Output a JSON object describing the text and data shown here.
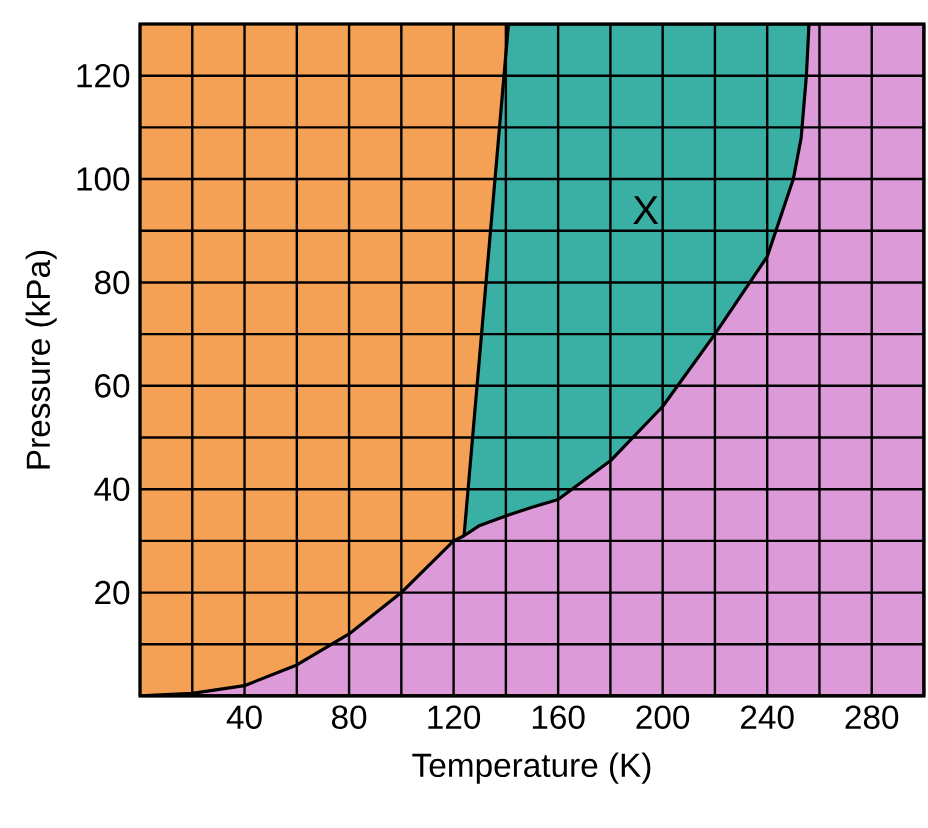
{
  "chart_data": {
    "type": "area",
    "grid": true,
    "xlabel": "Temperature (K)",
    "ylabel": "Pressure (kPa)",
    "series": [
      {
        "color": "#f4a155",
        "x": [
          0,
          141
        ],
        "values": [
          130,
          130
        ]
      },
      {
        "color": "#3aafa3",
        "x": [
          124,
          130,
          141,
          150,
          160,
          180,
          200,
          220,
          240,
          250,
          253,
          255,
          256
        ],
        "values": [
          31,
          66,
          130,
          130,
          130,
          130,
          130,
          130,
          130,
          130,
          130,
          130,
          130
        ]
      },
      {
        "color": "#dc9ad8",
        "x": [
          0,
          20,
          40,
          60,
          80,
          100,
          120,
          124,
          130,
          141,
          150,
          160,
          180,
          200,
          220,
          240,
          250,
          253,
          255,
          256,
          300
        ],
        "values": [
          0,
          0.5,
          2,
          6,
          12,
          20,
          30,
          31,
          33,
          35,
          36.5,
          38,
          45.5,
          56,
          70,
          85,
          100,
          108,
          120,
          130,
          130
        ]
      }
    ],
    "xlim": [
      0,
      300
    ],
    "xticks": [
      {
        "value": 0,
        "label": null
      },
      {
        "value": 20,
        "label": null
      },
      40,
      {
        "value": 60,
        "label": null
      },
      80,
      {
        "value": 100,
        "label": null
      },
      120,
      {
        "value": 140,
        "label": null
      },
      160,
      {
        "value": 180,
        "label": null
      },
      200,
      {
        "value": 220,
        "label": null
      },
      240,
      {
        "value": 260,
        "label": null
      },
      280,
      {
        "value": 300,
        "label": null
      }
    ],
    "ylim": [
      0,
      130
    ],
    "yticks": [
      {
        "value": 0,
        "label": null
      },
      {
        "value": 10,
        "label": null
      },
      20,
      {
        "value": 30,
        "label": null
      },
      40,
      {
        "value": 50,
        "label": null
      },
      60,
      {
        "value": 70,
        "label": null
      },
      80,
      {
        "value": 90,
        "label": null
      },
      100,
      {
        "value": 110,
        "label": null
      },
      120,
      {
        "value": 130,
        "label": null
      }
    ],
    "annotations": [
      "X"
    ]
  }
}
